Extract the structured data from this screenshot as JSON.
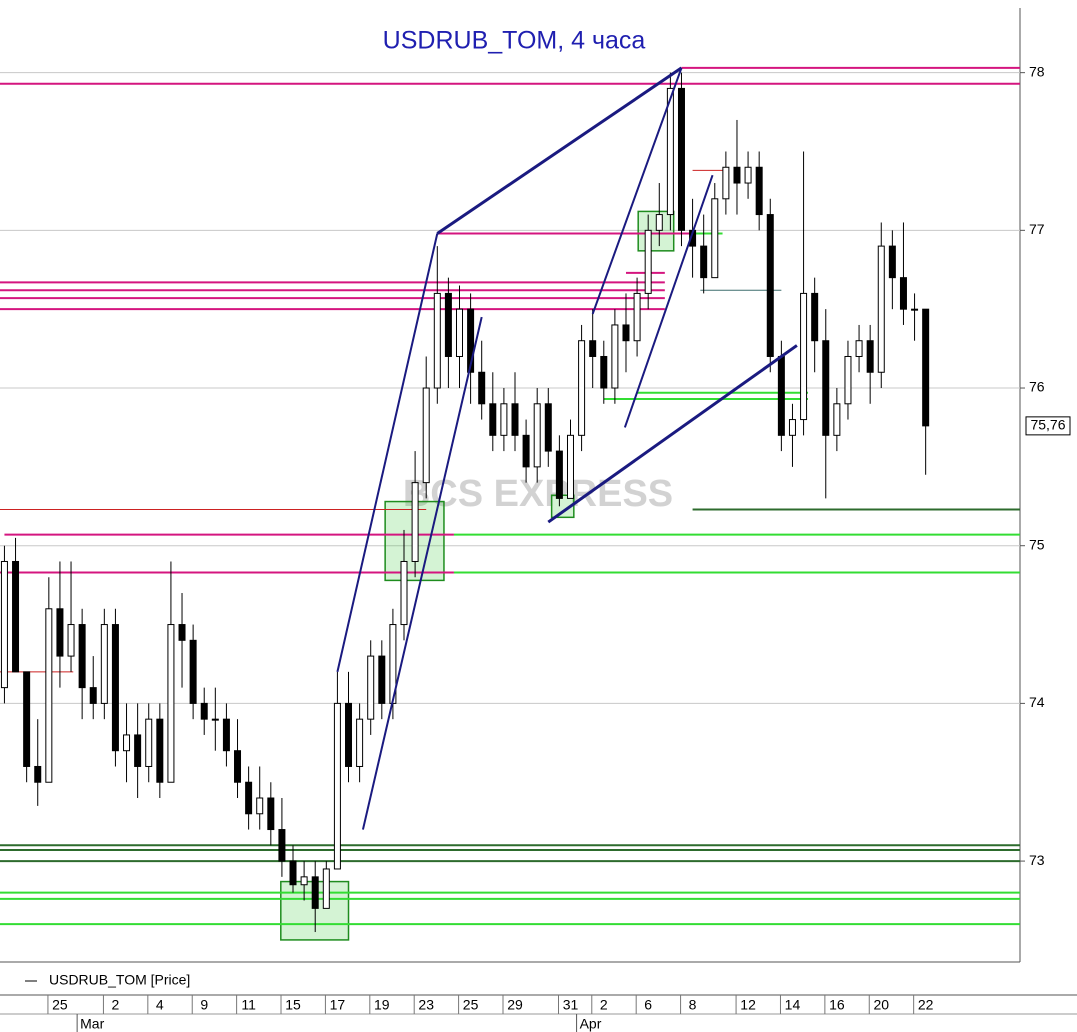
{
  "chart_data": {
    "type": "candlestick",
    "title": "USDRUB_TOM, 4 часа",
    "watermark": "BCS EXPRESS",
    "legend": "USDRUB_TOM [Price]",
    "categories": [
      null,
      null,
      null,
      null,
      null,
      "25",
      null,
      null,
      null,
      null,
      "2",
      null,
      null,
      null,
      "4",
      null,
      null,
      null,
      "9",
      null,
      null,
      null,
      "11",
      null,
      null,
      null,
      "15",
      null,
      null,
      null,
      "17",
      null,
      null,
      null,
      "19",
      null,
      null,
      null,
      "23",
      null,
      null,
      null,
      "25",
      null,
      null,
      null,
      "29",
      null,
      null,
      null,
      null,
      "31",
      null,
      null,
      "2",
      null,
      null,
      null,
      "6",
      null,
      null,
      null,
      "8",
      null,
      null,
      null,
      null,
      "12",
      null,
      null,
      null,
      "14",
      null,
      null,
      null,
      "16",
      null,
      null,
      null,
      "20",
      null,
      null,
      null,
      "22"
    ],
    "months": [
      null,
      null,
      null,
      null,
      null,
      null,
      null,
      "Mar",
      null,
      null,
      null,
      null,
      null,
      null,
      null,
      null,
      null,
      null,
      null,
      null,
      null,
      null,
      null,
      null,
      null,
      null,
      null,
      null,
      null,
      null,
      null,
      null,
      null,
      null,
      null,
      null,
      null,
      null,
      null,
      null,
      null,
      null,
      null,
      null,
      null,
      null,
      null,
      null,
      null,
      null,
      null,
      null,
      "Apr",
      null,
      null,
      null,
      null,
      null,
      null,
      null,
      null,
      null,
      null,
      null,
      null,
      null,
      null,
      null,
      null,
      null,
      null,
      null,
      null,
      null,
      null,
      null,
      null,
      null,
      null,
      null,
      null,
      null,
      null,
      null
    ],
    "open": [
      74.1,
      74.9,
      74.2,
      73.6,
      73.5,
      74.6,
      74.3,
      74.5,
      74.1,
      74.0,
      74.5,
      73.7,
      73.8,
      73.6,
      73.9,
      73.5,
      74.5,
      74.4,
      74.0,
      73.9,
      73.9,
      73.7,
      73.5,
      73.3,
      73.4,
      73.2,
      73.0,
      72.85,
      72.9,
      72.7,
      72.95,
      74.0,
      73.6,
      73.9,
      74.3,
      74.0,
      74.5,
      74.9,
      75.4,
      76.0,
      76.6,
      76.2,
      76.5,
      76.1,
      75.9,
      75.7,
      75.9,
      75.7,
      75.5,
      75.9,
      75.6,
      75.3,
      75.7,
      76.3,
      76.2,
      76.0,
      76.4,
      76.3,
      76.6,
      77.0,
      77.1,
      77.9,
      77.0,
      76.9,
      76.7,
      77.2,
      77.4,
      77.3,
      77.4,
      77.1,
      76.2,
      75.7,
      75.8,
      76.6,
      76.3,
      75.7,
      75.9,
      76.2,
      76.3,
      76.1,
      76.9,
      76.7,
      76.5,
      76.5
    ],
    "high": [
      75.0,
      75.05,
      74.2,
      73.9,
      74.8,
      74.9,
      74.9,
      74.6,
      74.3,
      74.6,
      74.6,
      74.0,
      74.0,
      74.0,
      74.0,
      74.9,
      74.7,
      74.5,
      74.1,
      74.1,
      74.0,
      73.9,
      73.6,
      73.6,
      73.5,
      73.4,
      73.1,
      73.0,
      73.0,
      73.0,
      74.2,
      74.2,
      74.0,
      74.4,
      74.4,
      74.6,
      75.1,
      75.6,
      76.2,
      76.9,
      76.7,
      76.65,
      76.6,
      76.3,
      76.1,
      76.0,
      76.1,
      75.8,
      76.0,
      76.0,
      75.7,
      75.8,
      76.4,
      76.5,
      76.3,
      76.5,
      76.6,
      76.7,
      77.1,
      77.3,
      78.0,
      78.0,
      77.2,
      77.1,
      77.3,
      77.5,
      77.7,
      77.5,
      77.5,
      77.2,
      76.3,
      75.9,
      77.5,
      76.7,
      76.5,
      76.0,
      76.3,
      76.4,
      76.4,
      77.05,
      77.0,
      77.05,
      76.6,
      76.5
    ],
    "low": [
      74.0,
      74.2,
      73.5,
      73.35,
      73.5,
      74.1,
      74.2,
      73.9,
      73.9,
      73.9,
      73.6,
      73.5,
      73.4,
      73.5,
      73.4,
      73.5,
      74.1,
      73.9,
      73.8,
      73.7,
      73.6,
      73.4,
      73.2,
      73.2,
      73.1,
      72.9,
      72.8,
      72.75,
      72.55,
      72.7,
      72.95,
      73.5,
      73.5,
      73.8,
      73.9,
      73.9,
      74.4,
      74.8,
      75.3,
      75.9,
      76.0,
      76.0,
      75.9,
      75.8,
      75.6,
      75.6,
      75.6,
      75.4,
      75.4,
      75.5,
      75.25,
      75.3,
      75.6,
      76.0,
      75.9,
      75.9,
      76.1,
      76.2,
      76.5,
      76.9,
      77.0,
      76.9,
      76.7,
      76.6,
      76.7,
      77.1,
      77.1,
      77.2,
      77.0,
      76.1,
      75.6,
      75.5,
      75.7,
      76.1,
      75.3,
      75.6,
      75.8,
      76.1,
      75.9,
      76.0,
      76.5,
      76.4,
      76.3,
      75.45
    ],
    "close": [
      74.9,
      74.2,
      73.6,
      73.5,
      74.6,
      74.3,
      74.5,
      74.1,
      74.0,
      74.5,
      73.7,
      73.8,
      73.6,
      73.9,
      73.5,
      74.5,
      74.4,
      74.0,
      73.9,
      73.9,
      73.7,
      73.5,
      73.3,
      73.4,
      73.2,
      73.0,
      72.85,
      72.9,
      72.7,
      72.95,
      74.0,
      73.6,
      73.9,
      74.3,
      74.0,
      74.5,
      74.9,
      75.4,
      76.0,
      76.6,
      76.2,
      76.5,
      76.1,
      75.9,
      75.7,
      75.9,
      75.7,
      75.5,
      75.9,
      75.6,
      75.3,
      75.7,
      76.3,
      76.2,
      76.0,
      76.4,
      76.3,
      76.6,
      77.0,
      77.1,
      77.9,
      77.0,
      76.9,
      76.7,
      77.2,
      77.4,
      77.3,
      77.4,
      77.1,
      76.2,
      75.7,
      75.8,
      76.6,
      76.3,
      75.7,
      75.9,
      76.2,
      76.3,
      76.1,
      76.9,
      76.7,
      76.5,
      76.5,
      75.76
    ],
    "up_color": "#ffffff",
    "down_color": "#000000",
    "last_price": {
      "value": 75.76,
      "label": "75,76"
    },
    "xlim": [
      -0.4,
      91.5
    ],
    "ylim": [
      72.36,
      78.41
    ],
    "yticks": [
      73,
      74,
      75,
      76,
      77,
      78
    ],
    "grid": true,
    "levels": [
      {
        "value": 78.03,
        "from": 61,
        "to": 91.5,
        "color": "#d4157f"
      },
      {
        "value": 77.93,
        "from": -0.4,
        "to": 91.5,
        "color": "#d4157f"
      },
      {
        "value": 76.98,
        "from": 39,
        "to": 62,
        "color": "#d4157f"
      },
      {
        "value": 76.73,
        "from": 56,
        "to": 59.5,
        "color": "#d4157f"
      },
      {
        "value": 76.67,
        "from": -0.4,
        "to": 59.5,
        "color": "#d4157f"
      },
      {
        "value": 76.62,
        "from": -0.4,
        "to": 59.5,
        "color": "#d4157f"
      },
      {
        "value": 76.57,
        "from": -0.4,
        "to": 59.5,
        "color": "#d4157f"
      },
      {
        "value": 76.5,
        "from": -0.4,
        "to": 59.5,
        "color": "#d4157f"
      },
      {
        "value": 75.07,
        "from": 0,
        "to": 40.5,
        "color": "#d4157f"
      },
      {
        "value": 74.83,
        "from": -0.4,
        "to": 40.5,
        "color": "#d4157f"
      },
      {
        "value": 75.07,
        "from": 40.5,
        "to": 91.5,
        "color": "#33dd33"
      },
      {
        "value": 74.83,
        "from": 40.5,
        "to": 91.5,
        "color": "#33dd33"
      },
      {
        "value": 75.97,
        "from": 57,
        "to": 72.4,
        "color": "#33dd33"
      },
      {
        "value": 75.93,
        "from": 54,
        "to": 72.4,
        "color": "#33dd33"
      },
      {
        "value": 76.98,
        "from": 62,
        "to": 64.7,
        "color": "#33dd33"
      },
      {
        "value": 72.8,
        "from": -0.4,
        "to": 91.5,
        "color": "#33dd33"
      },
      {
        "value": 72.76,
        "from": -0.4,
        "to": 91.5,
        "color": "#33dd33"
      },
      {
        "value": 72.6,
        "from": -0.4,
        "to": 91.5,
        "color": "#33dd33"
      },
      {
        "value": 73.1,
        "from": -0.4,
        "to": 91.5,
        "color": "#2d6b2d"
      },
      {
        "value": 73.07,
        "from": -0.4,
        "to": 91.5,
        "color": "#2d6b2d"
      },
      {
        "value": 73.0,
        "from": -0.4,
        "to": 91.5,
        "color": "#2d6b2d"
      },
      {
        "value": 75.23,
        "from": 62,
        "to": 91.5,
        "color": "#2d6b2d"
      },
      {
        "value": 75.23,
        "from": -0.4,
        "to": 38,
        "color": "#cc2222"
      },
      {
        "value": 74.2,
        "from": -0.4,
        "to": 6.2,
        "color": "#cc2222"
      },
      {
        "value": 77.38,
        "from": 62,
        "to": 65,
        "color": "#cc2222"
      },
      {
        "value": 76.62,
        "from": 62.7,
        "to": 70,
        "color": "#3f6f6f"
      }
    ],
    "trend_lines": [
      {
        "x": [
          39,
          61
        ],
        "y": [
          76.98,
          78.03
        ],
        "color": "#1a1a80"
      },
      {
        "x": [
          30,
          39
        ],
        "y": [
          74.2,
          76.98
        ],
        "color": "#1a1a80"
      },
      {
        "x": [
          32.3,
          43
        ],
        "y": [
          73.2,
          76.45
        ],
        "color": "#1a1a80"
      },
      {
        "x": [
          53,
          61
        ],
        "y": [
          76.47,
          78.03
        ],
        "color": "#1a1a80"
      },
      {
        "x": [
          55.9,
          63.8
        ],
        "y": [
          75.75,
          77.35
        ],
        "color": "#1a1a80"
      },
      {
        "x": [
          49,
          71.4
        ],
        "y": [
          75.15,
          76.27
        ],
        "color": "#1a1a80"
      }
    ],
    "boxes": [
      {
        "x": [
          24.9,
          31
        ],
        "y": [
          72.5,
          72.87
        ]
      },
      {
        "x": [
          34.3,
          39.6
        ],
        "y": [
          74.78,
          75.28
        ]
      },
      {
        "x": [
          49.3,
          51.3
        ],
        "y": [
          75.18,
          75.32
        ]
      },
      {
        "x": [
          57.1,
          60.3
        ],
        "y": [
          76.87,
          77.12
        ]
      }
    ]
  }
}
